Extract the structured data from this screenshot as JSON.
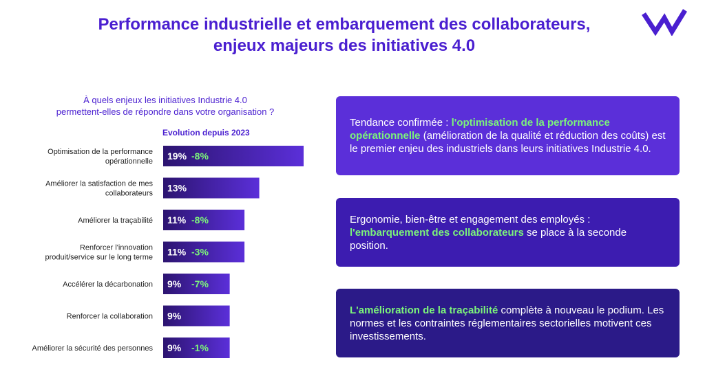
{
  "title": {
    "line1": "Performance industrielle et embarquement des collaborateurs,",
    "line2": "enjeux majeurs des initiatives 4.0"
  },
  "brand": {
    "logo": "W",
    "color": "#4a1fd0"
  },
  "question": {
    "line1": "À quels enjeux les initiatives Industrie 4.0",
    "line2": "permettent-elles de répondre dans votre organisation ?"
  },
  "evolution_label": "Evolution depuis 2023",
  "colors": {
    "bar_start": "#2c1470",
    "bar_end": "#5b2fd9",
    "change": "#7cf47a",
    "text_purple": "#4a1fd0"
  },
  "chart_data": {
    "type": "bar",
    "orientation": "horizontal",
    "title": "À quels enjeux les initiatives Industrie 4.0 permettent-elles de répondre dans votre organisation ?",
    "categories": [
      [
        "Optimisation de la performance",
        "opérationnelle"
      ],
      [
        "Améliorer la satisfaction de mes",
        "collaborateurs"
      ],
      [
        "Améliorer la traçabilité"
      ],
      [
        "Renforcer l'innovation",
        "produit/service sur le long terme"
      ],
      [
        "Accélérer la décarbonation"
      ],
      [
        "Renforcer la collaboration"
      ],
      [
        "Améliorer la sécurité des personnes"
      ]
    ],
    "values": [
      19,
      13,
      11,
      11,
      9,
      9,
      9
    ],
    "labels": [
      "19%",
      "13%",
      "11%",
      "11%",
      "9%",
      "9%",
      "9%"
    ],
    "changes": [
      "-8%",
      "",
      "-8%",
      "-3%",
      "-7%",
      "",
      "-1%"
    ],
    "unit": "%",
    "xlim": [
      0,
      19
    ]
  },
  "cards": [
    {
      "parts": [
        {
          "text": "Tendance confirmée : ",
          "hl": false
        },
        {
          "text": "l'optimisation de la performance opérationnelle",
          "hl": true
        },
        {
          "text": " (amélioration de la qualité et réduction des coûts) est le premier enjeu des industriels dans leurs initiatives Industrie 4.0.",
          "hl": false
        }
      ]
    },
    {
      "parts": [
        {
          "text": "Ergonomie,  bien-être et engagement des employés : ",
          "hl": false
        },
        {
          "text": "l'embarquement des collaborateurs",
          "hl": true
        },
        {
          "text": " se place à la seconde position.",
          "hl": false
        }
      ]
    },
    {
      "parts": [
        {
          "text": "L'amélioration de la traçabilité",
          "hl": true
        },
        {
          "text": " complète à nouveau le podium. Les normes et les contraintes réglementaires sectorielles motivent ces investissements.",
          "hl": false
        }
      ]
    }
  ]
}
